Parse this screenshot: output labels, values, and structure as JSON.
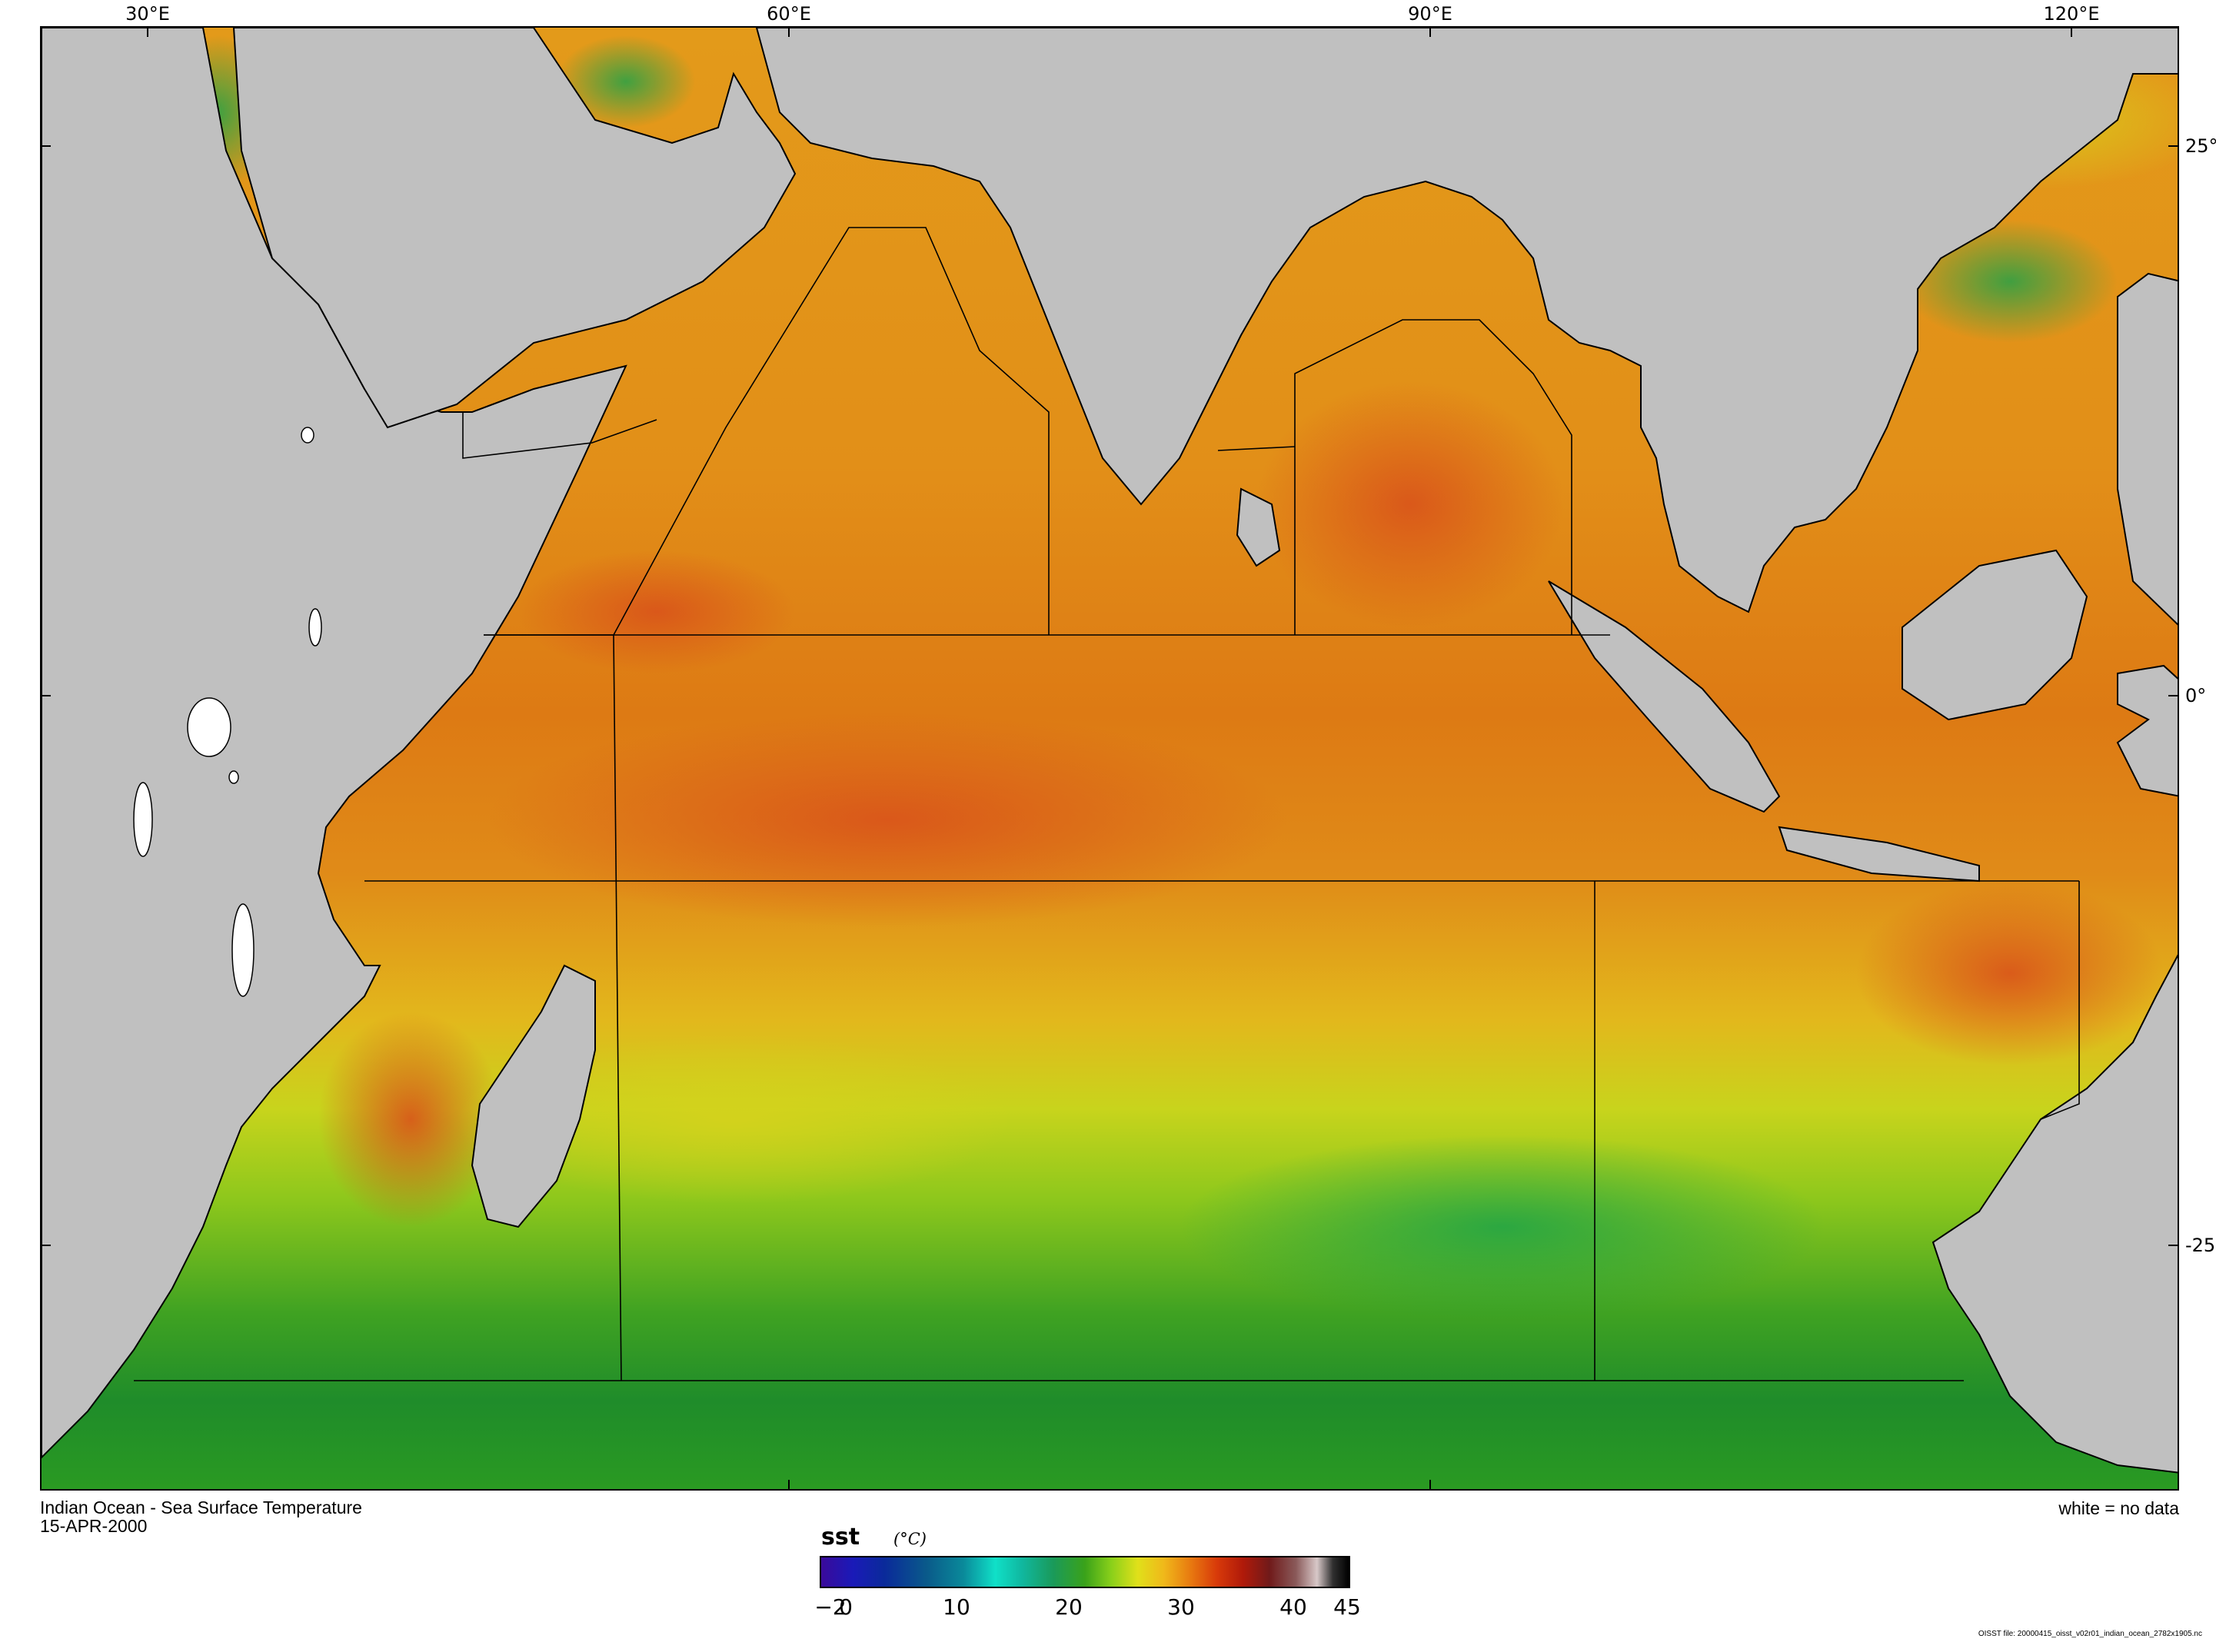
{
  "map": {
    "title": "Indian Ocean - Sea Surface Temperature",
    "date": "15-APR-2000",
    "no_data_note": "white = no data",
    "file_note": "OISST file: 20000415_oisst_v02r01_indian_ocean_2782x1905.nc",
    "lon_labels": [
      "30°E",
      "60°E",
      "90°E",
      "120°E"
    ],
    "lat_labels": [
      "25°",
      "0°",
      "-25°"
    ],
    "colors": {
      "land": "#c0c0c0",
      "no_data": "#ffffff",
      "coast": "#000000"
    }
  },
  "colorbar": {
    "variable": "sst",
    "unit": "(°C)",
    "ticks": [
      "−2",
      "0",
      "10",
      "20",
      "30",
      "40",
      "45"
    ],
    "range": [
      -2,
      45
    ]
  }
}
